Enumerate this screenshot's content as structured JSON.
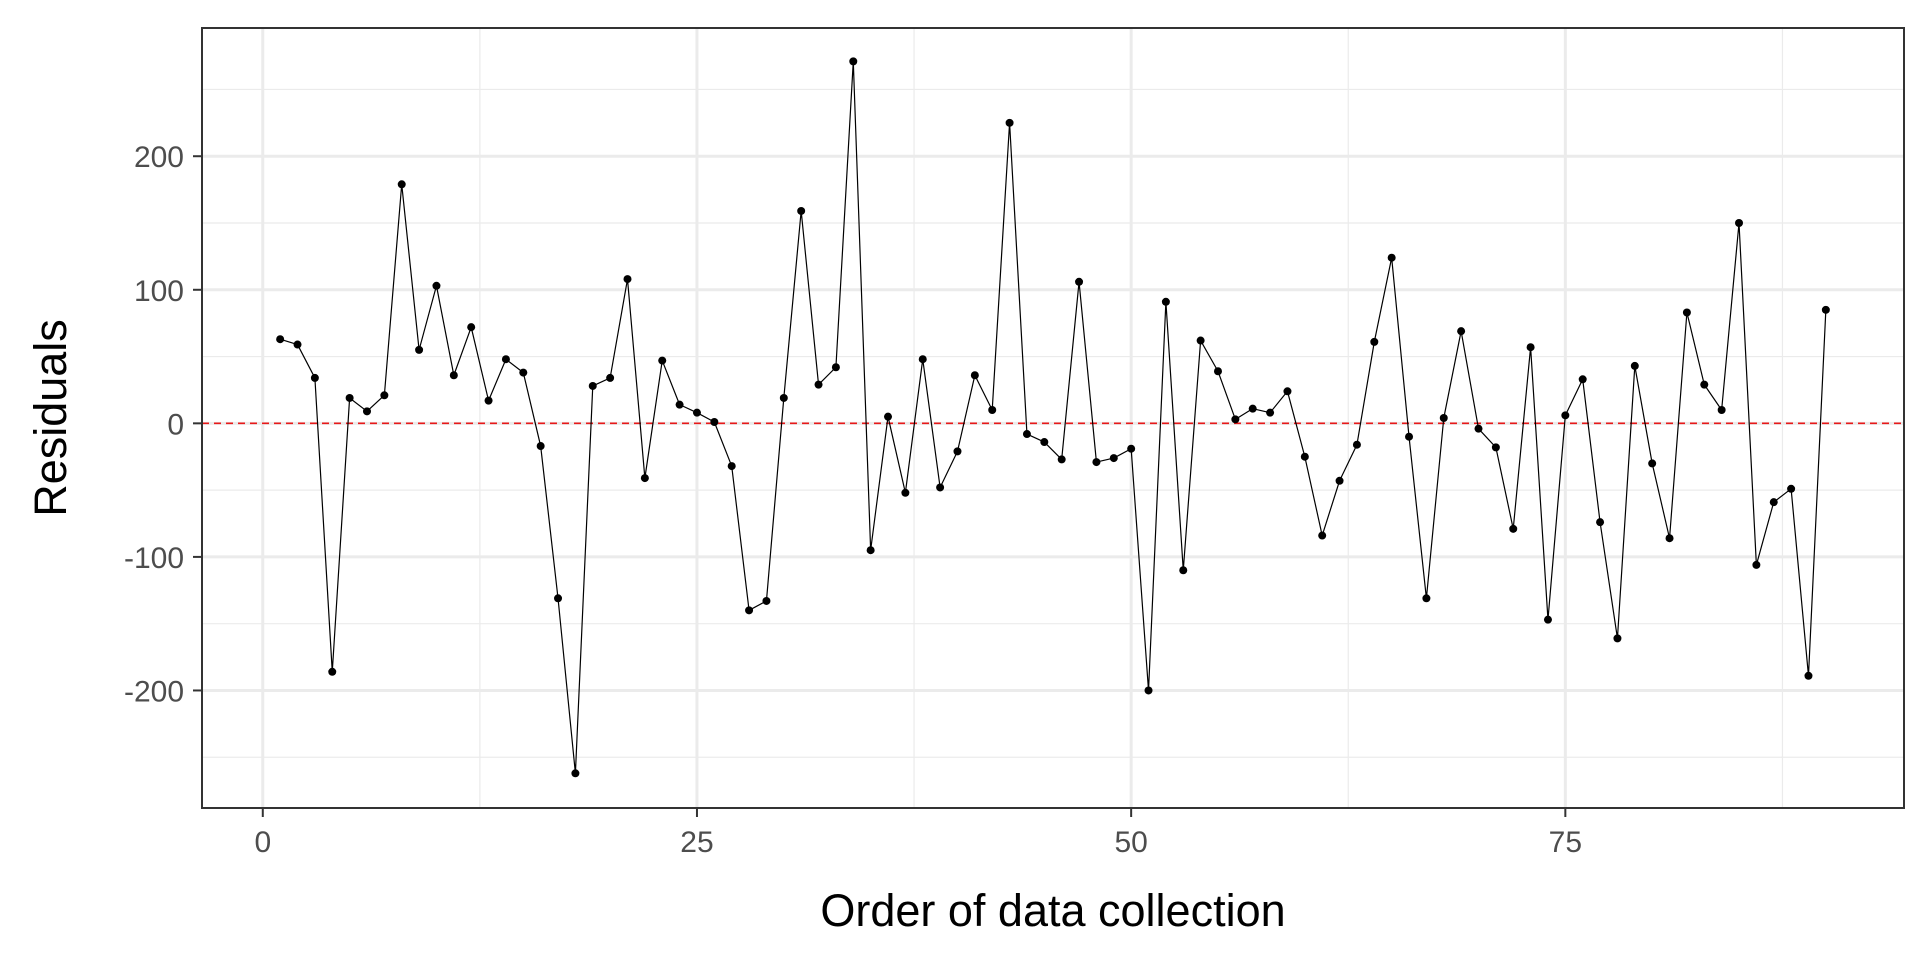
{
  "chart_data": {
    "type": "line",
    "title": "",
    "xlabel": "Order of data collection",
    "ylabel": "Residuals",
    "xlim": [
      -3.5,
      94.5
    ],
    "ylim": [
      -288,
      296
    ],
    "x_ticks": [
      0,
      25,
      50,
      75
    ],
    "x_tick_labels": [
      "0",
      "25",
      "50",
      "75"
    ],
    "y_ticks": [
      -200,
      -100,
      0,
      100,
      200
    ],
    "y_tick_labels": [
      "-200",
      "-100",
      "0",
      "100",
      "200"
    ],
    "grid": true,
    "reference_line": {
      "y": 0,
      "color": "#e8191a",
      "style": "dashed"
    },
    "line_color": "#000000",
    "point_color": "#000000",
    "series": [
      {
        "x": [
          1,
          2,
          3,
          4,
          5,
          6,
          7,
          8,
          9,
          10,
          11,
          12,
          13,
          14,
          15,
          16,
          17,
          18,
          19,
          20,
          21,
          22,
          23,
          24,
          25,
          26,
          27,
          28,
          29,
          30,
          31,
          32,
          33,
          34,
          35,
          36,
          37,
          38,
          39,
          40,
          41,
          42,
          43,
          44,
          45,
          46,
          47,
          48,
          49,
          50,
          51,
          52,
          53,
          54,
          55,
          56,
          57,
          58,
          59,
          60,
          61,
          62,
          63,
          64,
          65,
          66,
          67,
          68,
          69,
          70,
          71,
          72,
          73,
          74,
          75,
          76,
          77,
          78,
          79,
          80,
          81,
          82,
          83,
          84,
          85,
          86,
          87,
          88,
          89,
          90
        ],
        "values": [
          63,
          59,
          34,
          -186,
          19,
          9,
          21,
          179,
          55,
          103,
          36,
          72,
          17,
          48,
          38,
          -17,
          -131,
          -262,
          28,
          34,
          108,
          -41,
          47,
          14,
          8,
          1,
          -32,
          -140,
          -133,
          19,
          159,
          29,
          42,
          271,
          -95,
          5,
          -52,
          48,
          -48,
          -21,
          36,
          10,
          225,
          -8,
          -14,
          -27,
          106,
          -29,
          -26,
          -19,
          -200,
          91,
          -110,
          62,
          39,
          3,
          11,
          8,
          24,
          -25,
          -84,
          -43,
          -16,
          61,
          124,
          -10,
          -131,
          4,
          69,
          -4,
          -18,
          -79,
          57,
          -147,
          6,
          33,
          -74,
          -161,
          43,
          -30,
          -86,
          83,
          29,
          10,
          150,
          -106,
          -59,
          -49,
          -189,
          85
        ]
      }
    ]
  }
}
